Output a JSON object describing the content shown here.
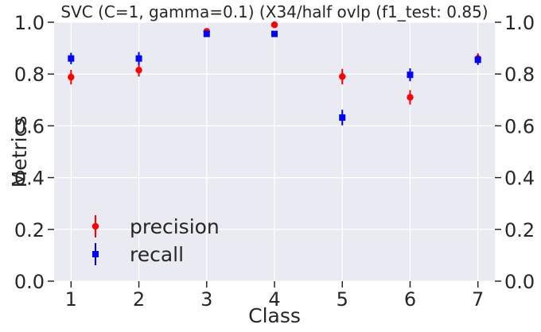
{
  "chart_data": {
    "type": "scatter",
    "title": "SVC (C=1, gamma=0.1) (X34/half ovlp (f1_test: 0.85)",
    "xlabel": "Class",
    "ylabel": "Metrics",
    "xlim": [
      0.75,
      7.25
    ],
    "ylim": [
      0.0,
      1.0
    ],
    "x_ticks": [
      1,
      2,
      3,
      4,
      5,
      6,
      7
    ],
    "y_ticks": [
      "0.0",
      "0.2",
      "0.4",
      "0.6",
      "0.8",
      "1.0"
    ],
    "y_ticks_right": [
      "0.0",
      "0.2",
      "0.4",
      "0.6",
      "0.8",
      "1.0"
    ],
    "grid": true,
    "legend_position": "lower-left",
    "series": [
      {
        "name": "precision",
        "marker": "circle",
        "color": "#ff0000",
        "x": [
          1,
          2,
          3,
          4,
          5,
          6,
          7
        ],
        "y": [
          0.788,
          0.815,
          0.965,
          0.99,
          0.79,
          0.71,
          0.86
        ],
        "err": [
          0.028,
          0.025,
          0.01,
          0.006,
          0.03,
          0.028,
          0.02
        ]
      },
      {
        "name": "recall",
        "marker": "square",
        "color": "#0000ff",
        "x": [
          1,
          2,
          3,
          4,
          5,
          6,
          7
        ],
        "y": [
          0.86,
          0.86,
          0.955,
          0.955,
          0.632,
          0.797,
          0.855
        ],
        "err": [
          0.022,
          0.025,
          0.012,
          0.01,
          0.03,
          0.025,
          0.02
        ]
      }
    ]
  }
}
